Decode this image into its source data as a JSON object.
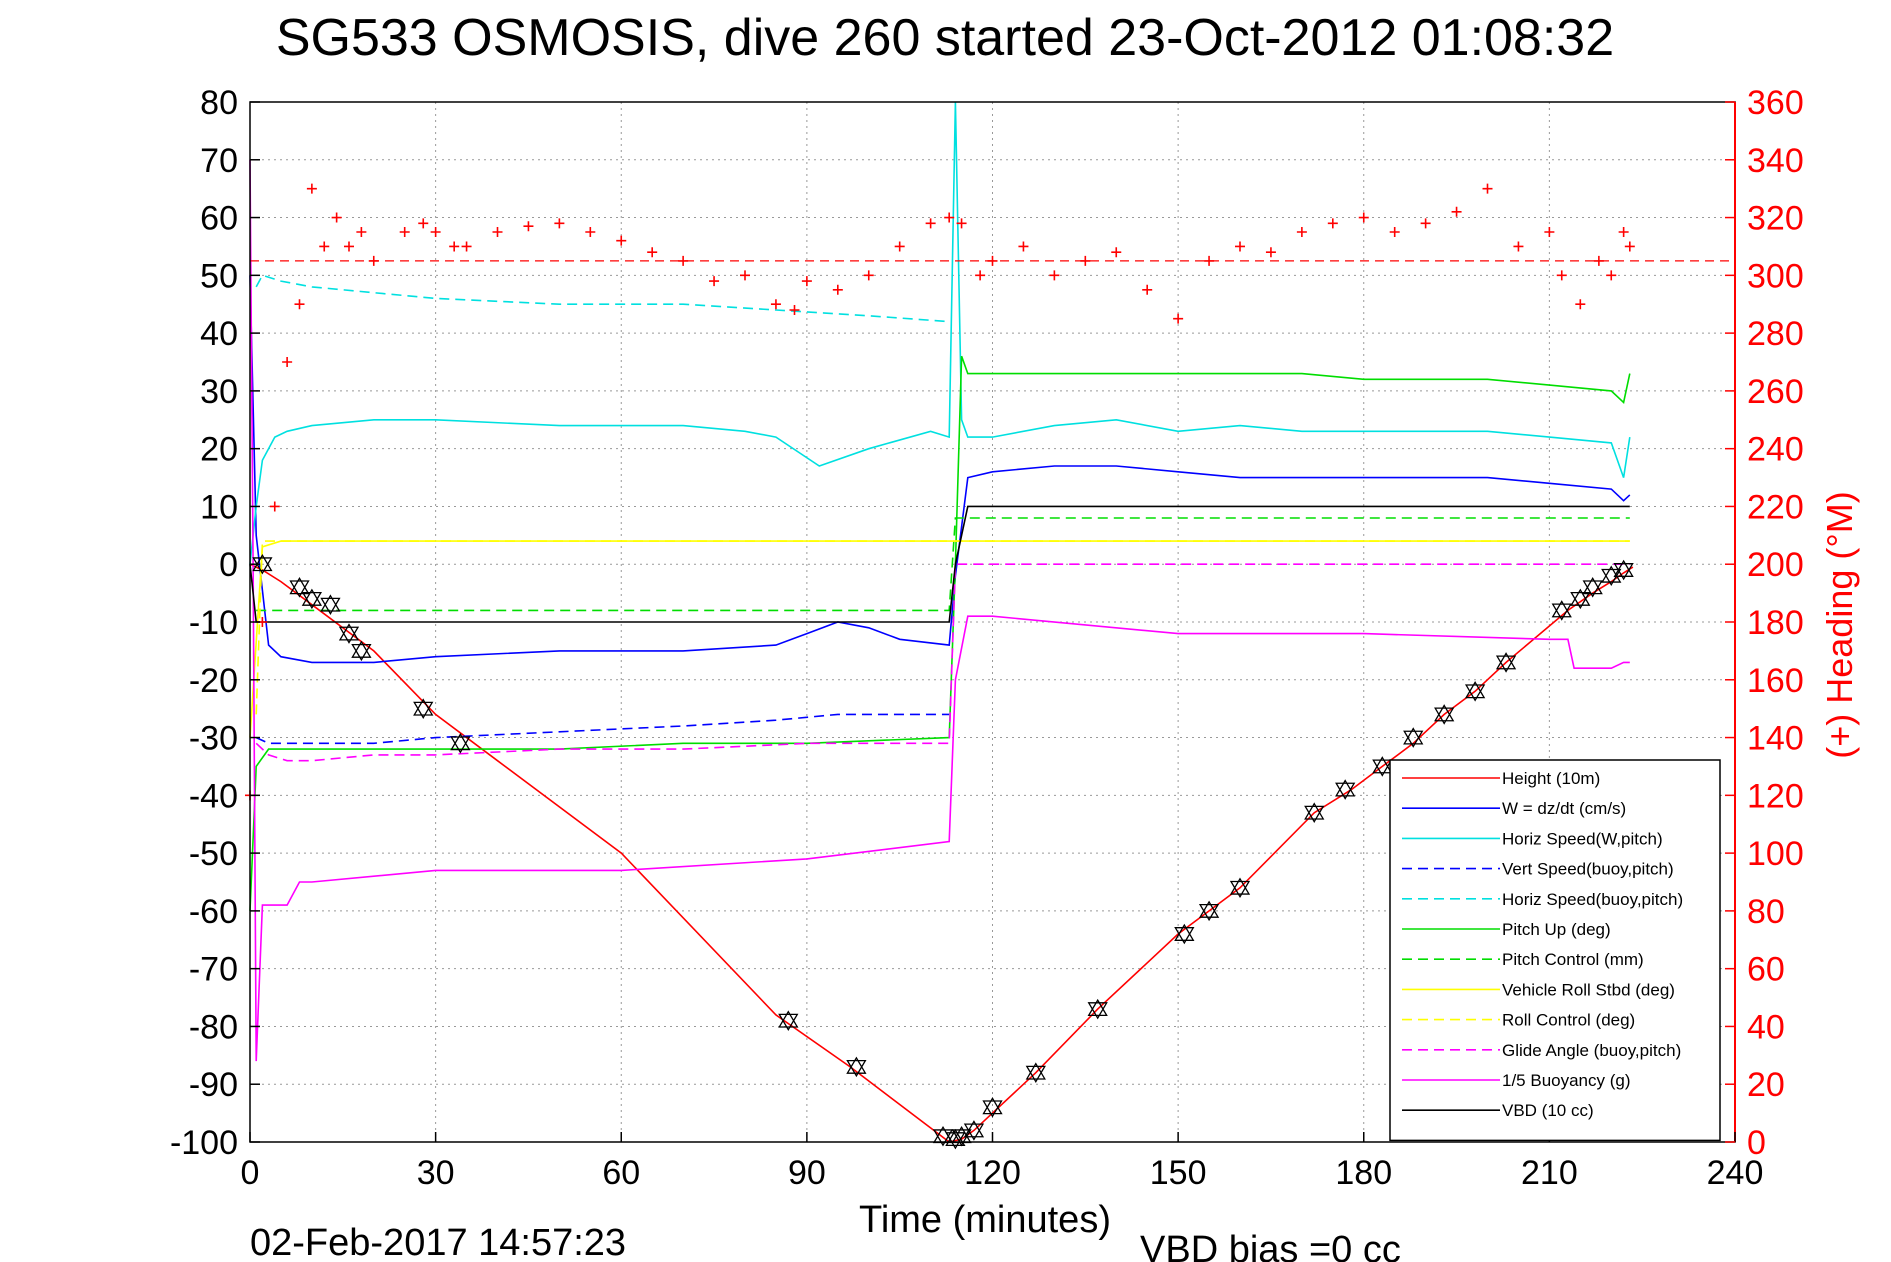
{
  "chart_data": {
    "type": "line",
    "title": "SG533 OSMOSIS, dive 260 started 23-Oct-2012 01:08:32",
    "xlabel": "Time (minutes)",
    "ylabel_right": "(+) Heading (°M)",
    "xlim": [
      0,
      240
    ],
    "ylim_left": [
      -100,
      80
    ],
    "ylim_right": [
      0,
      360
    ],
    "x_ticks": [
      "0",
      "30",
      "60",
      "90",
      "120",
      "150",
      "180",
      "210",
      "240"
    ],
    "y_ticks_left": [
      "80",
      "70",
      "60",
      "50",
      "40",
      "30",
      "20",
      "10",
      "0",
      "-10",
      "-20",
      "-30",
      "-40",
      "-50",
      "-60",
      "-70",
      "-80",
      "-90",
      "-100"
    ],
    "y_ticks_right": [
      "360",
      "340",
      "320",
      "300",
      "280",
      "260",
      "240",
      "220",
      "200",
      "180",
      "160",
      "140",
      "120",
      "100",
      "80",
      "60",
      "40",
      "20",
      "0"
    ],
    "grid": true,
    "legend_position": "bottom-right",
    "footer_date": "02-Feb-2017 14:57:23",
    "footer_vbd": "VBD bias =0 cc",
    "heading_target": 305,
    "series": [
      {
        "name": "Height (10m)",
        "color": "#ff0000",
        "dash": "solid",
        "x": [
          0,
          2,
          5,
          10,
          20,
          30,
          40,
          60,
          85,
          97,
          113,
          115,
          117,
          120,
          127,
          137,
          150,
          155,
          160,
          172,
          178,
          183,
          188,
          193,
          198,
          203,
          213,
          217,
          220,
          222,
          223.5
        ],
        "y": [
          0,
          -1,
          -3,
          -7,
          -15,
          -26,
          -34,
          -50,
          -78,
          -87,
          -100,
          -99.5,
          -98,
          -95,
          -88,
          -77,
          -64,
          -60,
          -56,
          -43,
          -39,
          -35,
          -31,
          -26,
          -22,
          -17,
          -8,
          -5,
          -3,
          -1.5,
          -0.5
        ]
      },
      {
        "name": "W = dz/dt (cm/s)",
        "color": "#0000ff",
        "dash": "solid",
        "x": [
          0,
          1,
          3,
          5,
          10,
          20,
          30,
          50,
          70,
          85,
          90,
          95,
          100,
          105,
          113,
          114,
          116,
          120,
          130,
          140,
          150,
          160,
          170,
          180,
          190,
          200,
          210,
          220,
          222,
          223
        ],
        "y": [
          50,
          5,
          -14,
          -16,
          -17,
          -17,
          -16,
          -15,
          -15,
          -14,
          -12,
          -10,
          -11,
          -13,
          -14,
          -2,
          15,
          16,
          17,
          17,
          16,
          15,
          15,
          15,
          15,
          15,
          14,
          13,
          11,
          12
        ]
      },
      {
        "name": "Horiz Speed(W,pitch)",
        "color": "#00e0e0",
        "dash": "solid",
        "x": [
          0,
          1,
          2,
          4,
          6,
          10,
          20,
          30,
          50,
          70,
          80,
          85,
          92,
          100,
          110,
          113,
          114,
          115,
          116,
          120,
          130,
          140,
          150,
          160,
          170,
          180,
          190,
          200,
          210,
          220,
          222,
          223
        ],
        "y": [
          0,
          10,
          18,
          22,
          23,
          24,
          25,
          25,
          24,
          24,
          23,
          22,
          17,
          20,
          23,
          22,
          80,
          25,
          22,
          22,
          24,
          25,
          23,
          24,
          23,
          23,
          23,
          23,
          22,
          21,
          15,
          22
        ]
      },
      {
        "name": "Vert Speed(buoy,pitch)",
        "color": "#0000ff",
        "dash": "dashed",
        "x": [
          1,
          3,
          6,
          10,
          20,
          30,
          50,
          70,
          85,
          95,
          100,
          113
        ],
        "y": [
          -30,
          -31,
          -31,
          -31,
          -31,
          -30,
          -29,
          -28,
          -27,
          -26,
          -26,
          -26
        ]
      },
      {
        "name": "Horiz Speed(buoy,pitch)",
        "color": "#00e0e0",
        "dash": "dashed",
        "x": [
          1,
          2,
          5,
          10,
          20,
          30,
          50,
          70,
          85,
          100,
          113
        ],
        "y": [
          48,
          50,
          49,
          48,
          47,
          46,
          45,
          45,
          44,
          43,
          42
        ]
      },
      {
        "name": "Pitch Up (deg)",
        "color": "#00dd00",
        "dash": "solid",
        "x": [
          0,
          1,
          3,
          5,
          10,
          20,
          30,
          50,
          70,
          90,
          113,
          114,
          115,
          116,
          120,
          130,
          140,
          150,
          160,
          170,
          180,
          190,
          200,
          210,
          220,
          222,
          223
        ],
        "y": [
          -60,
          -35,
          -32,
          -32,
          -32,
          -32,
          -32,
          -32,
          -31,
          -31,
          -30,
          0,
          36,
          33,
          33,
          33,
          33,
          33,
          33,
          33,
          32,
          32,
          32,
          31,
          30,
          28,
          33
        ]
      },
      {
        "name": "Pitch Control (mm)",
        "color": "#00dd00",
        "dash": "dashed",
        "x": [
          1,
          2,
          113,
          114,
          116,
          223
        ],
        "y": [
          -8,
          -8,
          -8,
          8,
          8,
          8
        ]
      },
      {
        "name": "Vehicle Roll Stbd (deg)",
        "color": "#ffff00",
        "dash": "solid",
        "x": [
          0,
          2,
          5,
          10,
          30,
          50,
          85,
          113,
          115,
          117,
          150,
          190,
          223
        ],
        "y": [
          -30,
          3,
          4,
          4,
          4,
          4,
          4,
          4,
          4,
          4,
          4,
          4,
          4
        ]
      },
      {
        "name": "Roll Control (deg)",
        "color": "#ffff00",
        "dash": "dashed",
        "x": [
          1,
          2,
          5,
          10,
          30,
          113,
          115,
          117,
          223
        ],
        "y": [
          -26,
          4,
          4,
          4,
          4,
          4,
          4,
          4,
          4
        ]
      },
      {
        "name": "Glide Angle (buoy,pitch)",
        "color": "#ff00ff",
        "dash": "dashed",
        "x": [
          1,
          3,
          6,
          10,
          20,
          30,
          50,
          70,
          90,
          113,
          114,
          116,
          223
        ],
        "y": [
          -31,
          -33,
          -34,
          -34,
          -33,
          -33,
          -32,
          -32,
          -31,
          -31,
          0,
          0,
          0
        ]
      },
      {
        "name": "1/5 Buoyancy (g)",
        "color": "#ff00ff",
        "dash": "solid",
        "x": [
          0,
          0.5,
          1,
          2,
          6,
          8,
          10,
          30,
          60,
          90,
          113,
          114,
          116,
          120,
          150,
          180,
          210,
          213,
          214,
          220,
          222,
          223
        ],
        "y": [
          70,
          0,
          -86,
          -59,
          -59,
          -55,
          -55,
          -53,
          -53,
          -51,
          -48,
          -20,
          -9,
          -9,
          -12,
          -12,
          -13,
          -13,
          -18,
          -18,
          -17,
          -17
        ]
      },
      {
        "name": "VBD (10 cc)",
        "color": "#000000",
        "dash": "solid",
        "x": [
          0,
          1,
          2,
          3,
          113,
          114,
          116,
          223
        ],
        "y": [
          0,
          -10,
          -10,
          -10,
          -10,
          0,
          10,
          10
        ]
      }
    ],
    "heading": {
      "name": "(+) Heading (°M)",
      "color": "#ff0000",
      "marker": "plus",
      "x": [
        0,
        2,
        4,
        6,
        8,
        10,
        12,
        14,
        16,
        18,
        20,
        25,
        28,
        30,
        33,
        35,
        40,
        45,
        50,
        55,
        60,
        65,
        70,
        75,
        80,
        85,
        88,
        90,
        95,
        100,
        105,
        110,
        113,
        115,
        118,
        120,
        125,
        130,
        135,
        140,
        145,
        150,
        155,
        160,
        165,
        170,
        175,
        180,
        185,
        190,
        195,
        200,
        205,
        210,
        212,
        215,
        218,
        220,
        222,
        223
      ],
      "y": [
        120,
        180,
        220,
        270,
        290,
        330,
        310,
        320,
        310,
        315,
        305,
        315,
        318,
        315,
        310,
        310,
        315,
        317,
        318,
        315,
        312,
        308,
        305,
        298,
        300,
        290,
        288,
        298,
        295,
        300,
        310,
        318,
        320,
        318,
        300,
        305,
        310,
        300,
        305,
        308,
        295,
        285,
        305,
        310,
        308,
        315,
        318,
        320,
        315,
        318,
        322,
        330,
        310,
        315,
        300,
        290,
        305,
        300,
        315,
        310
      ]
    },
    "markers": {
      "name": "Height (10m)",
      "style": "triangle-pair",
      "x": [
        2,
        8,
        10,
        13,
        16,
        18,
        28,
        34,
        87,
        98,
        112,
        114,
        115,
        117,
        120,
        127,
        137,
        151,
        155,
        160,
        172,
        177,
        183,
        188,
        193,
        198,
        203,
        212,
        215,
        217,
        220,
        222
      ],
      "y": [
        0,
        -4,
        -6,
        -7,
        -12,
        -15,
        -25,
        -31,
        -79,
        -87,
        -99,
        -99.5,
        -99,
        -98,
        -94,
        -88,
        -77,
        -64,
        -60,
        -56,
        -43,
        -39,
        -35,
        -30,
        -26,
        -22,
        -17,
        -8,
        -6,
        -4,
        -2,
        -1
      ]
    }
  }
}
